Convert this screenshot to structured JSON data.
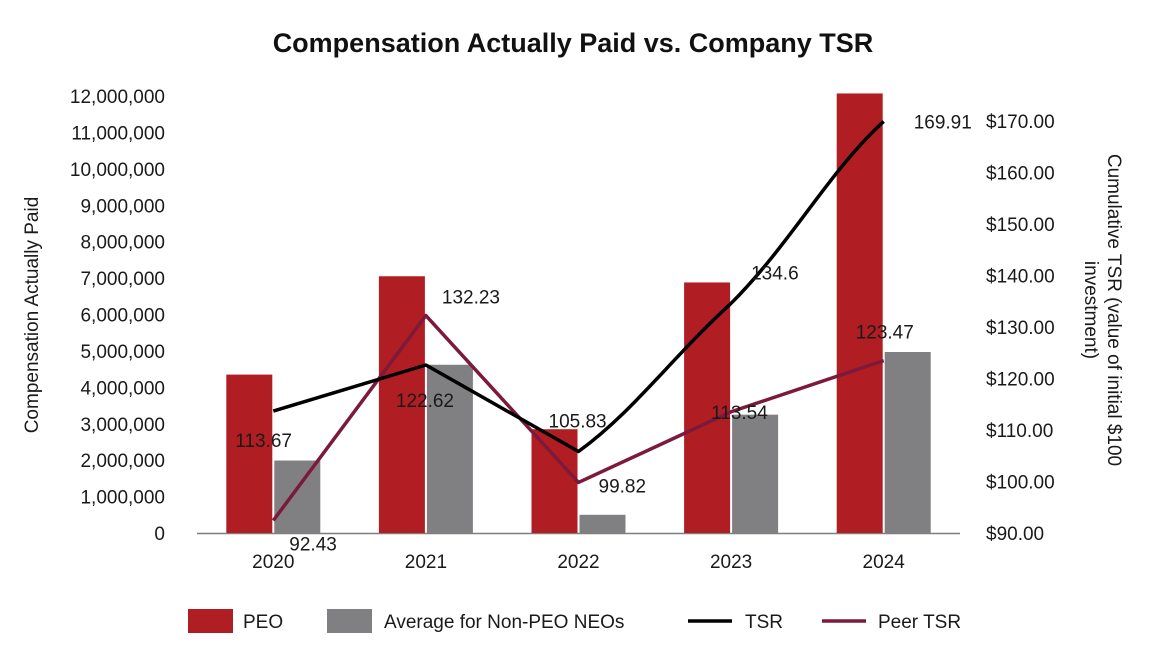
{
  "chart_data": {
    "type": "bar",
    "title": "Compensation Actually Paid vs. Company TSR",
    "categories": [
      "2020",
      "2021",
      "2022",
      "2023",
      "2024"
    ],
    "ylabel": "Compensation Actually Paid",
    "y2label_line1": "Cumulative TSR (value of initial $100",
    "y2label_line2": "investment)",
    "ylim": [
      0,
      12000000
    ],
    "y2lim": [
      90,
      175
    ],
    "yticks": [
      "0",
      "1,000,000",
      "2,000,000",
      "3,000,000",
      "4,000,000",
      "5,000,000",
      "6,000,000",
      "7,000,000",
      "8,000,000",
      "9,000,000",
      "10,000,000",
      "11,000,000",
      "12,000,000"
    ],
    "y2ticks": [
      "$90.00",
      "$100.00",
      "$110.00",
      "$120.00",
      "$130.00",
      "$140.00",
      "$150.00",
      "$160.00",
      "$170.00"
    ],
    "bar_series": [
      {
        "name": "PEO",
        "color": "#b01e23",
        "values": [
          4350000,
          7050000,
          2850000,
          6880000,
          12070000
        ]
      },
      {
        "name": "Average for Non-PEO NEOs",
        "color": "#808083",
        "values": [
          1990000,
          4620000,
          500000,
          3250000,
          4970000
        ]
      }
    ],
    "line_series": [
      {
        "name": "TSR",
        "color": "#000000",
        "values": [
          113.67,
          122.62,
          105.83,
          134.6,
          169.91
        ],
        "labels": [
          "113.67",
          "122.62",
          "105.83",
          "134.6",
          "169.91"
        ]
      },
      {
        "name": "Peer TSR",
        "color": "#7b1a3a",
        "values": [
          92.43,
          132.23,
          99.82,
          113.54,
          123.47
        ],
        "labels": [
          "92.43",
          "132.23",
          "99.82",
          "113.54",
          "123.47"
        ]
      }
    ],
    "legend": [
      "PEO",
      "Average for Non-PEO NEOs",
      "TSR",
      "Peer TSR"
    ],
    "legend_position": "bottom"
  }
}
